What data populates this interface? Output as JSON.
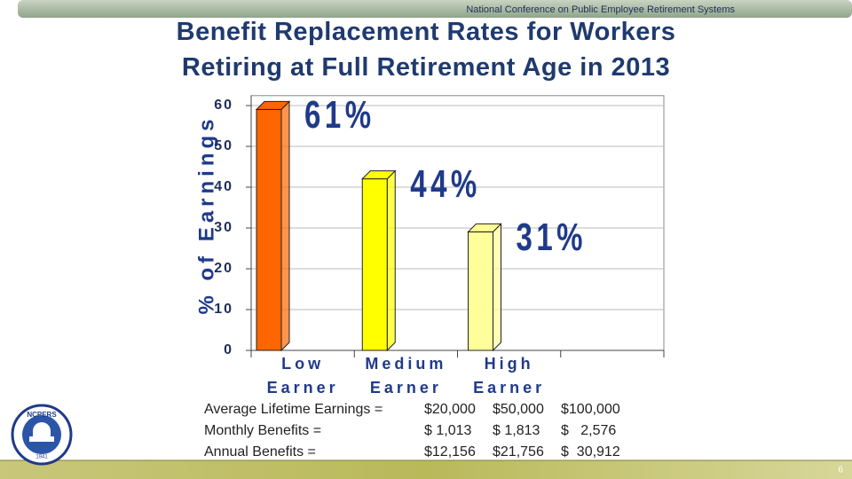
{
  "header": "National Conference on Public Employee Retirement Systems",
  "page_number": "6",
  "logo": {
    "name": "NCPERS",
    "year": "1941"
  },
  "chart_data": {
    "type": "bar3d",
    "title": [
      "Benefit Replacement Rates for Workers",
      "Retiring at Full Retirement Age in 2013"
    ],
    "y_label": "% of Earnings",
    "categories": [
      "Low Earner",
      "Medium Earner",
      "High Earner",
      null
    ],
    "values": [
      61,
      44,
      31,
      null
    ],
    "value_labels": [
      "61%",
      "44%",
      "31%",
      null
    ],
    "colors": [
      "#ff6600",
      "#ffff00",
      "#ffff99",
      null
    ],
    "ylim": [
      0,
      62
    ],
    "yticks": [
      0,
      10,
      20,
      30,
      40,
      50,
      60
    ],
    "grid": true
  },
  "table": {
    "rows": [
      [
        "Average Lifetime Earnings =",
        "$20,000",
        "$50,000",
        "$100,000"
      ],
      [
        "Monthly Benefits =",
        "$ 1,013",
        "$ 1,813",
        "$   2,576"
      ],
      [
        "Annual Benefits =",
        "$12,156",
        "$21,756",
        "$  30,912"
      ]
    ]
  }
}
